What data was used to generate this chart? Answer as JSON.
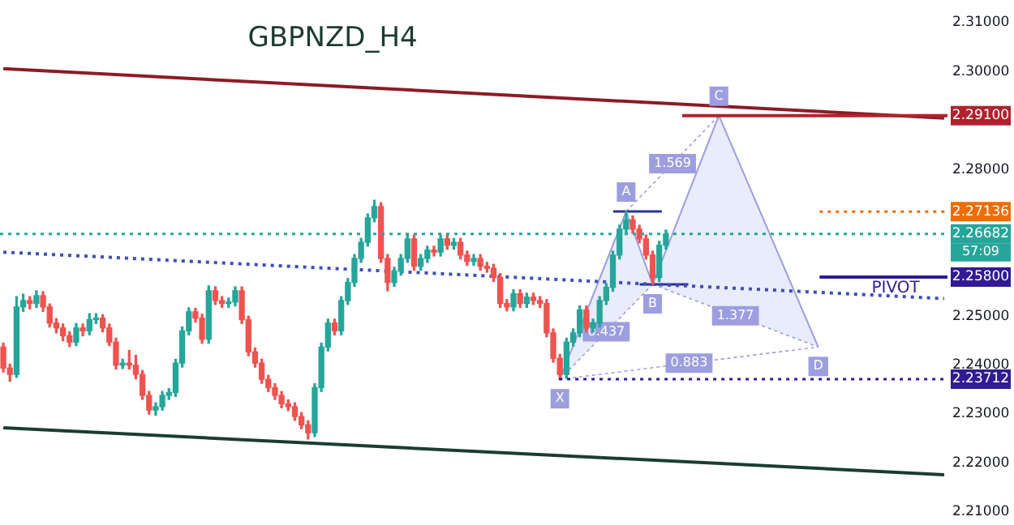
{
  "chart_data": {
    "type": "candlestick",
    "title": "GBPNZD_H4",
    "categories": [
      null,
      null,
      null,
      null,
      null,
      null,
      null,
      null,
      null,
      null,
      null,
      null,
      null,
      null,
      null,
      null,
      null,
      null,
      null,
      null,
      null,
      null,
      null,
      null,
      null,
      null,
      null,
      null,
      null,
      null,
      null,
      null,
      null,
      null,
      null,
      null,
      null,
      null,
      null,
      null,
      null,
      null,
      null,
      null,
      null,
      null,
      null,
      null,
      null,
      null,
      null,
      null,
      null,
      null,
      null,
      null,
      null,
      null,
      null,
      null,
      null,
      null,
      null,
      null,
      null,
      null,
      null,
      null,
      null,
      null,
      null,
      null,
      null,
      null,
      null,
      null,
      null,
      null,
      null,
      null,
      null,
      null,
      null,
      null,
      null,
      null,
      null,
      null,
      null,
      null,
      null,
      null,
      null,
      null,
      null,
      null,
      null,
      null,
      null,
      null,
      null,
      null,
      null,
      null,
      null,
      null,
      null,
      null,
      null,
      null,
      null,
      null,
      null,
      null,
      null,
      null,
      null,
      null,
      null,
      null,
      null,
      null,
      null,
      null,
      null,
      null,
      null,
      null,
      null,
      null,
      null,
      null,
      null,
      null,
      null,
      null,
      null,
      null,
      null,
      null,
      null,
      null,
      null
    ],
    "ohlc": [
      [
        2.2437,
        2.2445,
        2.2386,
        2.2394
      ],
      [
        2.2394,
        2.2402,
        2.2367,
        2.2381
      ],
      [
        2.2381,
        2.254,
        2.2375,
        2.2519
      ],
      [
        2.2519,
        2.2545,
        2.251,
        2.2532
      ],
      [
        2.2532,
        2.254,
        2.2515,
        2.2526
      ],
      [
        2.2526,
        2.2552,
        2.2518,
        2.2542
      ],
      [
        2.2542,
        2.255,
        2.251,
        2.2519
      ],
      [
        2.2519,
        2.2525,
        2.2478,
        2.2486
      ],
      [
        2.2486,
        2.2495,
        2.2466,
        2.2476
      ],
      [
        2.2476,
        2.2484,
        2.245,
        2.246
      ],
      [
        2.246,
        2.2468,
        2.2438,
        2.2447
      ],
      [
        2.2447,
        2.2485,
        2.244,
        2.2476
      ],
      [
        2.2476,
        2.2484,
        2.246,
        2.247
      ],
      [
        2.247,
        2.2505,
        2.2462,
        2.2493
      ],
      [
        2.2493,
        2.2505,
        2.2485,
        2.2496
      ],
      [
        2.2496,
        2.2503,
        2.2468,
        2.2476
      ],
      [
        2.2476,
        2.2484,
        2.244,
        2.2447
      ],
      [
        2.2447,
        2.2455,
        2.2392,
        2.24
      ],
      [
        2.24,
        2.2412,
        2.2393,
        2.2404
      ],
      [
        2.2404,
        2.243,
        2.2392,
        2.24
      ],
      [
        2.24,
        2.242,
        2.2372,
        2.2381
      ],
      [
        2.2381,
        2.2389,
        2.233,
        2.2338
      ],
      [
        2.2338,
        2.2346,
        2.23,
        2.2308
      ],
      [
        2.2308,
        2.2323,
        2.2298,
        2.2315
      ],
      [
        2.2315,
        2.2346,
        2.2308,
        2.2338
      ],
      [
        2.2338,
        2.2352,
        2.233,
        2.2344
      ],
      [
        2.2344,
        2.2412,
        2.2336,
        2.2404
      ],
      [
        2.2404,
        2.2478,
        2.2396,
        2.247
      ],
      [
        2.247,
        2.2517,
        2.2462,
        2.2509
      ],
      [
        2.2509,
        2.2516,
        2.2488,
        2.2496
      ],
      [
        2.2496,
        2.2504,
        2.2445,
        2.2453
      ],
      [
        2.2453,
        2.2562,
        2.2445,
        2.2552
      ],
      [
        2.2552,
        2.256,
        2.2524,
        2.2532
      ],
      [
        2.2532,
        2.254,
        2.2518,
        2.2526
      ],
      [
        2.2526,
        2.2537,
        2.2518,
        2.2529
      ],
      [
        2.2529,
        2.256,
        2.2521,
        2.2552
      ],
      [
        2.2552,
        2.256,
        2.2485,
        2.2493
      ],
      [
        2.2493,
        2.25,
        2.2419,
        2.2427
      ],
      [
        2.2427,
        2.2435,
        2.2396,
        2.2404
      ],
      [
        2.2404,
        2.2412,
        2.2363,
        2.2371
      ],
      [
        2.2371,
        2.2379,
        2.2346,
        2.2354
      ],
      [
        2.2354,
        2.2362,
        2.233,
        2.2338
      ],
      [
        2.2338,
        2.2346,
        2.2313,
        2.2321
      ],
      [
        2.2321,
        2.2329,
        2.2307,
        2.2315
      ],
      [
        2.2315,
        2.2323,
        2.2287,
        2.2295
      ],
      [
        2.2295,
        2.2303,
        2.227,
        2.2278
      ],
      [
        2.2278,
        2.2286,
        2.2249,
        2.2262
      ],
      [
        2.2262,
        2.2362,
        2.2254,
        2.2354
      ],
      [
        2.2354,
        2.2445,
        2.2346,
        2.2437
      ],
      [
        2.2437,
        2.2494,
        2.2429,
        2.2486
      ],
      [
        2.2486,
        2.2494,
        2.2462,
        2.247
      ],
      [
        2.247,
        2.254,
        2.2462,
        2.2532
      ],
      [
        2.2532,
        2.2577,
        2.2524,
        2.2569
      ],
      [
        2.2569,
        2.2626,
        2.2561,
        2.2618
      ],
      [
        2.2618,
        2.2659,
        2.261,
        2.2651
      ],
      [
        2.2651,
        2.2709,
        2.2643,
        2.2701
      ],
      [
        2.2701,
        2.2737,
        2.2693,
        2.2724
      ],
      [
        2.2724,
        2.2732,
        2.261,
        2.2618
      ],
      [
        2.2618,
        2.2626,
        2.2552,
        2.2569
      ],
      [
        2.2569,
        2.26,
        2.2561,
        2.2592
      ],
      [
        2.2592,
        2.2626,
        2.2584,
        2.2618
      ],
      [
        2.2618,
        2.2666,
        2.261,
        2.2658
      ],
      [
        2.2658,
        2.2666,
        2.2594,
        2.2602
      ],
      [
        2.2602,
        2.2626,
        2.2594,
        2.2618
      ],
      [
        2.2618,
        2.2643,
        2.261,
        2.2635
      ],
      [
        2.2635,
        2.2643,
        2.2623,
        2.2631
      ],
      [
        2.2631,
        2.2666,
        2.2623,
        2.2658
      ],
      [
        2.2658,
        2.2666,
        2.2637,
        2.2645
      ],
      [
        2.2645,
        2.2659,
        2.2637,
        2.2651
      ],
      [
        2.2651,
        2.2659,
        2.2617,
        2.2625
      ],
      [
        2.2625,
        2.2633,
        2.2604,
        2.2612
      ],
      [
        2.2612,
        2.2626,
        2.2604,
        2.2618
      ],
      [
        2.2618,
        2.2626,
        2.2594,
        2.2602
      ],
      [
        2.2602,
        2.261,
        2.259,
        2.2598
      ],
      [
        2.2598,
        2.2606,
        2.2571,
        2.2579
      ],
      [
        2.2579,
        2.2587,
        2.2518,
        2.2526
      ],
      [
        2.2526,
        2.2534,
        2.2511,
        2.2519
      ],
      [
        2.2519,
        2.2554,
        2.2511,
        2.2546
      ],
      [
        2.2546,
        2.2554,
        2.2518,
        2.2526
      ],
      [
        2.2526,
        2.2547,
        2.2518,
        2.2539
      ],
      [
        2.2539,
        2.2547,
        2.2524,
        2.2532
      ],
      [
        2.2532,
        2.254,
        2.2518,
        2.2526
      ],
      [
        2.2526,
        2.2534,
        2.2458,
        2.2466
      ],
      [
        2.2466,
        2.2474,
        2.2406,
        2.2414
      ],
      [
        2.2414,
        2.2422,
        2.2371,
        2.2381
      ],
      [
        2.2381,
        2.2455,
        2.2373,
        2.2447
      ],
      [
        2.2447,
        2.2474,
        2.2439,
        2.2466
      ],
      [
        2.2466,
        2.2521,
        2.2458,
        2.2513
      ],
      [
        2.2513,
        2.2521,
        2.2468,
        2.2476
      ],
      [
        2.2476,
        2.2494,
        2.2468,
        2.2486
      ],
      [
        2.2486,
        2.254,
        2.2478,
        2.2532
      ],
      [
        2.2532,
        2.2567,
        2.2524,
        2.2559
      ],
      [
        2.2559,
        2.2633,
        2.2551,
        2.2625
      ],
      [
        2.2625,
        2.2686,
        2.2617,
        2.2678
      ],
      [
        2.2678,
        2.2714,
        2.267,
        2.2697
      ],
      [
        2.2697,
        2.2705,
        2.267,
        2.2678
      ],
      [
        2.2678,
        2.2686,
        2.265,
        2.2658
      ],
      [
        2.2658,
        2.2666,
        2.2617,
        2.2625
      ],
      [
        2.2625,
        2.2633,
        2.2565,
        2.2579
      ],
      [
        2.2579,
        2.2653,
        2.2571,
        2.2645
      ],
      [
        2.2645,
        2.2676,
        2.2637,
        2.2668
      ],
      null,
      null,
      null,
      null,
      null,
      null,
      null,
      null,
      null,
      null,
      null,
      null,
      null,
      null,
      null,
      null,
      null,
      null,
      null,
      null,
      null,
      null,
      null,
      null,
      null,
      null,
      null,
      null,
      null,
      null,
      null,
      null,
      null,
      null,
      null,
      null,
      null,
      null,
      null,
      null,
      null,
      null
    ],
    "series": [
      {
        "type": "line",
        "color": "#8b1c24",
        "values": [
          2.3006,
          null,
          null,
          null,
          null,
          null,
          null,
          null,
          null,
          null,
          null,
          null,
          null,
          null,
          null,
          null,
          null,
          null,
          null,
          null,
          null,
          null,
          null,
          null,
          null,
          null,
          null,
          null,
          null,
          null,
          null,
          null,
          null,
          null,
          null,
          null,
          null,
          null,
          null,
          null,
          null,
          null,
          null,
          null,
          null,
          null,
          null,
          null,
          null,
          null,
          null,
          null,
          null,
          null,
          null,
          null,
          null,
          null,
          null,
          null,
          null,
          null,
          null,
          null,
          null,
          null,
          null,
          null,
          null,
          null,
          null,
          null,
          null,
          null,
          null,
          null,
          null,
          null,
          null,
          null,
          null,
          null,
          null,
          null,
          null,
          null,
          null,
          null,
          null,
          null,
          null,
          null,
          null,
          null,
          null,
          null,
          null,
          null,
          null,
          null,
          null,
          null,
          null,
          null,
          null,
          null,
          null,
          null,
          null,
          null,
          null,
          null,
          null,
          null,
          null,
          null,
          null,
          null,
          null,
          null,
          null,
          null,
          null,
          null,
          null,
          null,
          null,
          null,
          null,
          null,
          null,
          null,
          null,
          null,
          null,
          null,
          null,
          null,
          null,
          null,
          null,
          null,
          2.2905
        ]
      },
      {
        "type": "line",
        "color": "#3f51b5",
        "line_style": "dotted",
        "values": [
          2.2631,
          null,
          null,
          null,
          null,
          null,
          null,
          null,
          null,
          null,
          null,
          null,
          null,
          null,
          null,
          null,
          null,
          null,
          null,
          null,
          null,
          null,
          null,
          null,
          null,
          null,
          null,
          null,
          null,
          null,
          null,
          null,
          null,
          null,
          null,
          null,
          null,
          null,
          null,
          null,
          null,
          null,
          null,
          null,
          null,
          null,
          null,
          null,
          null,
          null,
          null,
          null,
          null,
          null,
          null,
          null,
          null,
          null,
          null,
          null,
          null,
          null,
          null,
          null,
          null,
          null,
          null,
          null,
          null,
          null,
          null,
          null,
          null,
          null,
          null,
          null,
          null,
          null,
          null,
          null,
          null,
          null,
          null,
          null,
          null,
          null,
          null,
          null,
          null,
          null,
          null,
          null,
          null,
          null,
          null,
          null,
          null,
          null,
          null,
          null,
          null,
          null,
          null,
          null,
          null,
          null,
          null,
          null,
          null,
          null,
          null,
          null,
          null,
          null,
          null,
          null,
          null,
          null,
          null,
          null,
          null,
          null,
          null,
          null,
          null,
          null,
          null,
          null,
          null,
          null,
          null,
          null,
          null,
          null,
          null,
          null,
          null,
          null,
          null,
          null,
          null,
          null,
          2.2536
        ]
      },
      {
        "type": "line",
        "color": "#1b3d2f",
        "values": [
          2.2272,
          null,
          null,
          null,
          null,
          null,
          null,
          null,
          null,
          null,
          null,
          null,
          null,
          null,
          null,
          null,
          null,
          null,
          null,
          null,
          null,
          null,
          null,
          null,
          null,
          null,
          null,
          null,
          null,
          null,
          null,
          null,
          null,
          null,
          null,
          null,
          null,
          null,
          null,
          null,
          null,
          null,
          null,
          null,
          null,
          null,
          null,
          null,
          null,
          null,
          null,
          null,
          null,
          null,
          null,
          null,
          null,
          null,
          null,
          null,
          null,
          null,
          null,
          null,
          null,
          null,
          null,
          null,
          null,
          null,
          null,
          null,
          null,
          null,
          null,
          null,
          null,
          null,
          null,
          null,
          null,
          null,
          null,
          null,
          null,
          null,
          null,
          null,
          null,
          null,
          null,
          null,
          null,
          null,
          null,
          null,
          null,
          null,
          null,
          null,
          null,
          null,
          null,
          null,
          null,
          null,
          null,
          null,
          null,
          null,
          null,
          null,
          null,
          null,
          null,
          null,
          null,
          null,
          null,
          null,
          null,
          null,
          null,
          null,
          null,
          null,
          null,
          null,
          null,
          null,
          null,
          null,
          null,
          null,
          null,
          null,
          null,
          null,
          null,
          null,
          null,
          null,
          2.2176
        ]
      },
      {
        "type": "line",
        "color": "#9c9ee0",
        "values": [
          null,
          null,
          null,
          null,
          null,
          null,
          null,
          null,
          null,
          null,
          null,
          null,
          null,
          null,
          null,
          null,
          null,
          null,
          null,
          null,
          null,
          null,
          null,
          null,
          null,
          null,
          null,
          null,
          null,
          null,
          null,
          null,
          null,
          null,
          null,
          null,
          null,
          null,
          null,
          null,
          null,
          null,
          null,
          null,
          null,
          null,
          null,
          null,
          null,
          null,
          null,
          null,
          null,
          null,
          null,
          null,
          null,
          null,
          null,
          null,
          null,
          null,
          null,
          null,
          null,
          null,
          null,
          null,
          null,
          null,
          null,
          null,
          null,
          null,
          null,
          null,
          null,
          null,
          null,
          null,
          null,
          null,
          null,
          null,
          2.2371,
          null,
          null,
          null,
          null,
          null,
          null,
          null,
          null,
          null,
          2.2714,
          null,
          null,
          null,
          2.2565,
          null,
          null,
          null,
          null,
          null,
          null,
          null,
          null,
          null,
          2.291,
          null,
          null,
          null,
          null,
          null,
          null,
          null,
          null,
          null,
          null,
          null,
          null,
          null,
          null,
          2.2437,
          null,
          null,
          null,
          null,
          null,
          null,
          null,
          null,
          null,
          null,
          null,
          null,
          null,
          null,
          null,
          null,
          null,
          null,
          null
        ]
      }
    ],
    "ref_lines": [
      {
        "axis": "y",
        "value": 2.291,
        "color": "#b2222e",
        "label": "2.29100"
      },
      {
        "axis": "y",
        "value": 2.27136,
        "color": "#ef6c00",
        "line_style": "dotted",
        "label": "2.27136"
      },
      {
        "axis": "y",
        "value": 2.26682,
        "color": "#26a69a",
        "line_style": "dotted",
        "label": "2.26682"
      },
      {
        "axis": "y",
        "value": 2.258,
        "color": "#311b92",
        "label": "2.25800"
      },
      {
        "axis": "y",
        "value": 2.23712,
        "color": "#311b92",
        "line_style": "dotted",
        "label": "2.23712"
      }
    ],
    "annotations": [
      "X",
      "A",
      "B",
      "C",
      "D",
      "0.437",
      "1.569",
      "1.377",
      "0.883",
      "57:09",
      {
        "text": "PIVOT",
        "y": 2.258
      }
    ],
    "ylim": [
      2.21,
      2.31
    ],
    "yticks": [
      {
        "value": 2.21,
        "label": "2.21000"
      },
      {
        "value": 2.22,
        "label": "2.22000"
      },
      {
        "value": 2.23,
        "label": "2.23000"
      },
      {
        "value": 2.24,
        "label": "2.24000"
      },
      {
        "value": 2.25,
        "label": "2.25000"
      },
      {
        "value": 2.28,
        "label": "2.28000"
      },
      {
        "value": 2.3,
        "label": "2.30000"
      },
      {
        "value": 2.31,
        "label": "2.31000"
      }
    ],
    "tick_labels": "y"
  }
}
